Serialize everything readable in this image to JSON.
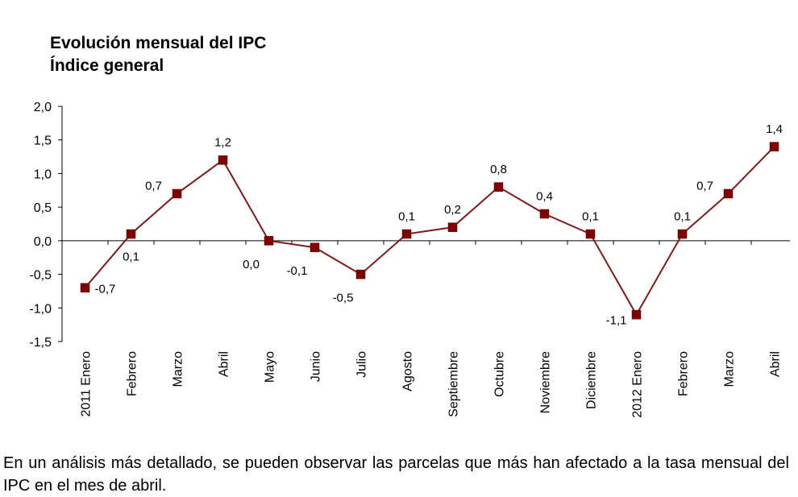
{
  "chart_data": {
    "type": "line",
    "title": "Evolución mensual del IPC",
    "subtitle": "Índice general",
    "categories": [
      "2011 Enero",
      "Febrero",
      "Marzo",
      "Abril",
      "Mayo",
      "Junio",
      "Julio",
      "Agosto",
      "Septiembre",
      "Octubre",
      "Noviembre",
      "Diciembre",
      "2012 Enero",
      "Febrero",
      "Marzo",
      "Abril"
    ],
    "values": [
      -0.7,
      0.1,
      0.7,
      1.2,
      0.0,
      -0.1,
      -0.5,
      0.1,
      0.2,
      0.8,
      0.4,
      0.1,
      -1.1,
      0.1,
      0.7,
      1.4
    ],
    "data_labels": [
      "-0,7",
      "0,1",
      "0,7",
      "1,2",
      "0,0",
      "-0,1",
      "-0,5",
      "0,1",
      "0,2",
      "0,8",
      "0,4",
      "0,1",
      "-1,1",
      "0,1",
      "0,7",
      "1,4"
    ],
    "yticks": [
      2.0,
      1.5,
      1.0,
      0.5,
      0.0,
      -0.5,
      -1.0,
      -1.5
    ],
    "ytick_labels": [
      "2,0",
      "1,5",
      "1,0",
      "0,5",
      "0,0",
      "-0,5",
      "-1,0",
      "-1,5"
    ],
    "ylim": [
      -1.5,
      2.0
    ],
    "grid": false,
    "legend": "none",
    "line_color": "#7b1a1a",
    "marker_color": "#800000"
  },
  "caption": "En un análisis más detallado, se pueden observar las parcelas que más han afectado a la tasa mensual del IPC en el mes de abril."
}
